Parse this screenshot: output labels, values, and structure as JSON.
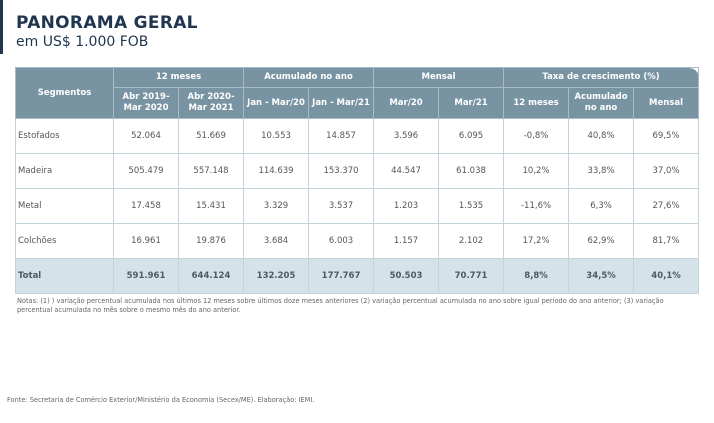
{
  "title": "PANORAMA GERAL",
  "subtitle": "em US$ 1.000 FOB",
  "table": {
    "header_groups": [
      "Segmentos",
      "12 meses",
      "Acumulado no ano",
      "Mensal",
      "Taxa de crescimento (%)"
    ],
    "subheaders": [
      "Abr 2019- Mar 2020",
      "Abr 2020- Mar 2021",
      "Jan - Mar/20",
      "Jan - Mar/21",
      "Mar/20",
      "Mar/21",
      "12 meses",
      "Acumulado no ano",
      "Mensal"
    ],
    "rows": [
      [
        "Estofados",
        "52.064",
        "51.669",
        "10.553",
        "14.857",
        "3.596",
        "6.095",
        "-0,8%",
        "40,8%",
        "69,5%"
      ],
      [
        "Madeira",
        "505.479",
        "557.148",
        "114.639",
        "153.370",
        "44.547",
        "61.038",
        "10,2%",
        "33,8%",
        "37,0%"
      ],
      [
        "Metal",
        "17.458",
        "15.431",
        "3.329",
        "3.537",
        "1.203",
        "1.535",
        "-11,6%",
        "6,3%",
        "27,6%"
      ],
      [
        "Colchões",
        "16.961",
        "19.876",
        "3.684",
        "6.003",
        "1.157",
        "2.102",
        "17,2%",
        "62,9%",
        "81,7%"
      ]
    ],
    "total": [
      "Total",
      "591.961",
      "644.124",
      "132.205",
      "177.767",
      "50.503",
      "70.771",
      "8,8%",
      "34,5%",
      "40,1%"
    ]
  },
  "notes": "Notas: (1) ) variação percentual acumulada nos últimos 12 meses sobre últimos doze meses anteriores (2) variação percentual acumulada no ano sobre igual período do ano anterior; (3) variação percentual acumulada no mês sobre o mesmo mês do ano anterior.",
  "source": "Fonte: Secretaria de Comércio Exterior/Ministério da Economia (Secex/ME). Elaboração: IEMI.",
  "colors": {
    "header": "#7894a2",
    "total_row": "#d6e2ea",
    "title": "#1f3550"
  }
}
